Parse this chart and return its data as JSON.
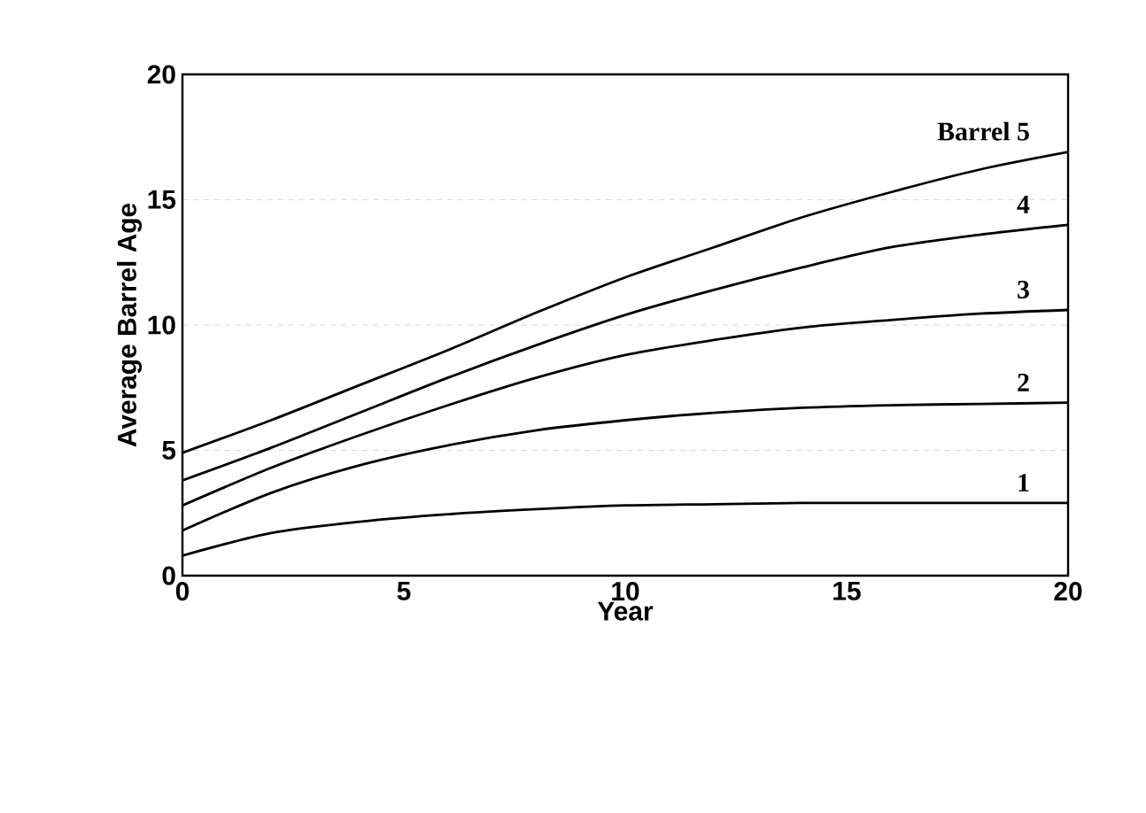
{
  "chart_data": {
    "type": "line",
    "xlabel": "Year",
    "ylabel": "Average Barrel Age",
    "x": [
      0,
      2,
      4,
      6,
      8,
      10,
      12,
      14,
      16,
      18,
      20
    ],
    "series": [
      {
        "name": "1",
        "color": "#000000",
        "values": [
          0.8,
          1.7,
          2.15,
          2.45,
          2.65,
          2.8,
          2.85,
          2.9,
          2.9,
          2.9,
          2.9
        ]
      },
      {
        "name": "2",
        "color": "#000000",
        "values": [
          1.8,
          3.3,
          4.4,
          5.2,
          5.8,
          6.2,
          6.5,
          6.7,
          6.8,
          6.85,
          6.9
        ]
      },
      {
        "name": "3",
        "color": "#000000",
        "values": [
          2.8,
          4.3,
          5.6,
          6.8,
          7.9,
          8.8,
          9.4,
          9.9,
          10.2,
          10.45,
          10.6
        ]
      },
      {
        "name": "4",
        "color": "#000000",
        "values": [
          3.8,
          5.1,
          6.5,
          7.9,
          9.2,
          10.4,
          11.4,
          12.3,
          13.1,
          13.6,
          14.0
        ]
      },
      {
        "name": "Barrel 5",
        "color": "#000000",
        "values": [
          4.9,
          6.2,
          7.6,
          9.0,
          10.5,
          11.9,
          13.1,
          14.3,
          15.3,
          16.2,
          16.9
        ]
      }
    ],
    "xlim": [
      0,
      20
    ],
    "ylim": [
      0,
      20
    ],
    "xticks": [
      0,
      5,
      10,
      15,
      20
    ],
    "yticks": [
      0,
      5,
      10,
      15,
      20
    ],
    "grid": "y",
    "marker": "none",
    "line_style": "solid"
  }
}
